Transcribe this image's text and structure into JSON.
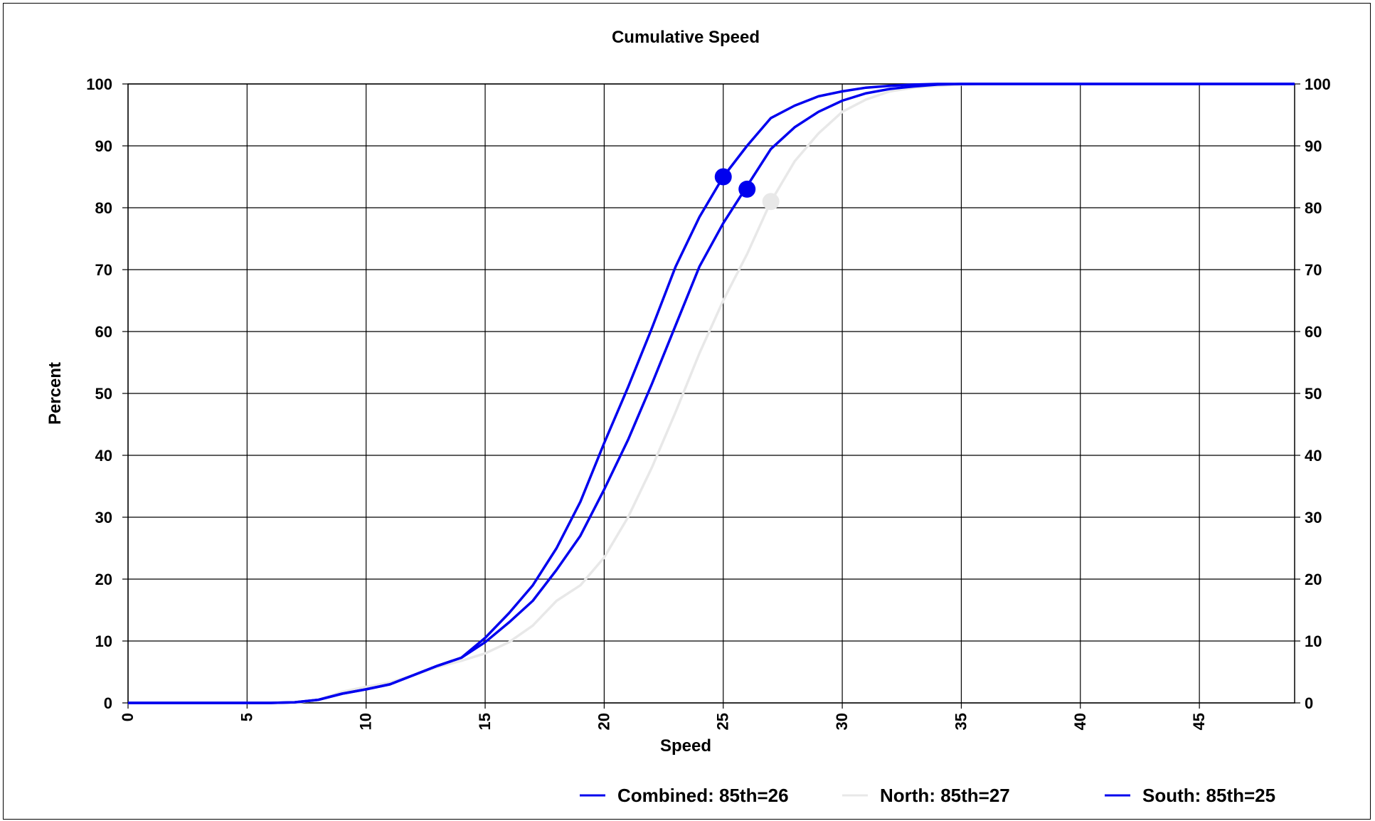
{
  "chart_data": {
    "type": "line",
    "title": "Cumulative Speed",
    "xlabel": "Speed",
    "ylabel": "Percent",
    "xlim": [
      0,
      49
    ],
    "ylim": [
      0,
      100
    ],
    "x_ticks": [
      "0",
      "5",
      "10",
      "15",
      "20",
      "25",
      "30",
      "35",
      "40",
      "45"
    ],
    "y_ticks": [
      "0",
      "10",
      "20",
      "30",
      "40",
      "50",
      "60",
      "70",
      "80",
      "90",
      "100"
    ],
    "grid": true,
    "secondary_y_axis": true,
    "legend_position": "bottom-right",
    "x": [
      0,
      6,
      7,
      8,
      9,
      10,
      11,
      12,
      13,
      14,
      15,
      16,
      17,
      18,
      19,
      20,
      21,
      22,
      23,
      24,
      25,
      26,
      27,
      28,
      29,
      30,
      31,
      32,
      33,
      34,
      35,
      36,
      37,
      38,
      39,
      40,
      45,
      49
    ],
    "series": [
      {
        "name": "Combined: 85th=26",
        "color": "#0000ee",
        "values": [
          0,
          0,
          0.1,
          0.5,
          1.5,
          2.2,
          3.0,
          4.5,
          6.0,
          7.3,
          9.8,
          13.0,
          16.5,
          21.5,
          27.0,
          34.5,
          42.5,
          51.5,
          61.0,
          70.5,
          77.5,
          83.5,
          89.5,
          93.0,
          95.5,
          97.3,
          98.5,
          99.2,
          99.6,
          99.9,
          100,
          100,
          100,
          100,
          100,
          100,
          100,
          100
        ],
        "marker": {
          "x": 26,
          "y": 83
        }
      },
      {
        "name": "North: 85th=27",
        "color": "#e8e8e8",
        "values": [
          0,
          0,
          0,
          0.5,
          1.8,
          2.6,
          3.3,
          4.5,
          5.8,
          6.8,
          8.0,
          9.8,
          12.5,
          16.5,
          19.0,
          23.5,
          30.0,
          38.0,
          47.0,
          56.5,
          65.0,
          72.5,
          81.0,
          87.5,
          92.0,
          95.5,
          97.5,
          98.8,
          99.4,
          99.7,
          99.9,
          100,
          100,
          100,
          100,
          100,
          100,
          100
        ],
        "marker": {
          "x": 27,
          "y": 81
        }
      },
      {
        "name": "South: 85th=25",
        "color": "#0000ee",
        "values": [
          0,
          0,
          0.1,
          0.5,
          1.5,
          2.2,
          3.0,
          4.5,
          6.0,
          7.3,
          10.5,
          14.5,
          19.0,
          25.0,
          32.5,
          42.0,
          51.0,
          60.5,
          70.5,
          78.5,
          85.0,
          90.0,
          94.5,
          96.5,
          98.0,
          98.8,
          99.4,
          99.7,
          99.9,
          100,
          100,
          100,
          100,
          100,
          100,
          100,
          100,
          100
        ],
        "marker": {
          "x": 25,
          "y": 85
        }
      }
    ]
  }
}
